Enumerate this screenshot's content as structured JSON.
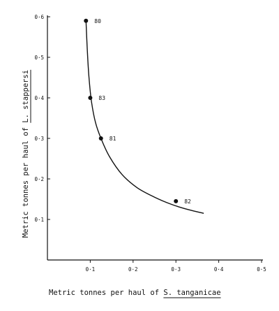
{
  "chart_data": {
    "type": "scatter",
    "title": "",
    "xlabel_prefix": "Metric tonnes per haul of ",
    "xlabel_species": "S. tanganicae",
    "ylabel_prefix": "Metric tonnes per haul of ",
    "ylabel_species": "L. stappersi",
    "xlim": [
      0,
      0.5
    ],
    "ylim": [
      0,
      0.6
    ],
    "xticks": [
      {
        "value": 0.1,
        "label": "0·1"
      },
      {
        "value": 0.2,
        "label": "0·2"
      },
      {
        "value": 0.3,
        "label": "0·3"
      },
      {
        "value": 0.4,
        "label": "0·4"
      },
      {
        "value": 0.5,
        "label": "0·5"
      }
    ],
    "yticks": [
      {
        "value": 0.1,
        "label": "0·1"
      },
      {
        "value": 0.2,
        "label": "0·2"
      },
      {
        "value": 0.3,
        "label": "0·3"
      },
      {
        "value": 0.4,
        "label": "0·4"
      },
      {
        "value": 0.5,
        "label": "0·5"
      },
      {
        "value": 0.6,
        "label": "0·6"
      }
    ],
    "points": [
      {
        "label": "80",
        "x": 0.09,
        "y": 0.59
      },
      {
        "label": "83",
        "x": 0.1,
        "y": 0.4
      },
      {
        "label": "81",
        "x": 0.125,
        "y": 0.3
      },
      {
        "label": "82",
        "x": 0.3,
        "y": 0.145
      }
    ],
    "curve": {
      "x": [
        0.09,
        0.093,
        0.097,
        0.103,
        0.112,
        0.125,
        0.145,
        0.175,
        0.21,
        0.25,
        0.29,
        0.33,
        0.365
      ],
      "y": [
        0.59,
        0.52,
        0.45,
        0.39,
        0.34,
        0.3,
        0.255,
        0.21,
        0.178,
        0.155,
        0.137,
        0.124,
        0.115
      ]
    },
    "grid": false
  }
}
